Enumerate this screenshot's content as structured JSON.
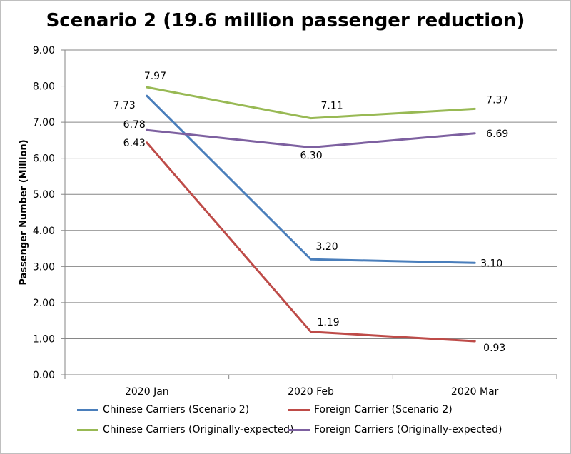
{
  "chart_data": {
    "type": "line",
    "title": "Scenario 2 (19.6 million passenger reduction)",
    "ylabel": "Passenger Number (Million)",
    "xlabel": "",
    "categories": [
      "2020 Jan",
      "2020 Feb",
      "2020 Mar"
    ],
    "ylim": [
      0,
      9
    ],
    "yticks": [
      "0.00",
      "1.00",
      "2.00",
      "3.00",
      "4.00",
      "5.00",
      "6.00",
      "7.00",
      "8.00",
      "9.00"
    ],
    "grid": true,
    "legend_position": "bottom",
    "series": [
      {
        "name": "Chinese Carriers (Scenario 2)",
        "values": [
          7.73,
          3.2,
          3.1
        ],
        "labels": [
          "7.73",
          "3.20",
          "3.10"
        ],
        "color": "#4a7ebb"
      },
      {
        "name": "Foreign Carrier (Scenario 2)",
        "values": [
          6.43,
          1.19,
          0.93
        ],
        "labels": [
          "6.43",
          "1.19",
          "0.93"
        ],
        "color": "#be4b48"
      },
      {
        "name": "Chinese Carriers (Originally-expected)",
        "values": [
          7.97,
          7.11,
          7.37
        ],
        "labels": [
          "7.97",
          "7.11",
          "7.37"
        ],
        "color": "#98b954"
      },
      {
        "name": "Foreign Carriers (Originally-expected)",
        "values": [
          6.78,
          6.3,
          6.69
        ],
        "labels": [
          "6.78",
          "6.30",
          "6.69"
        ],
        "color": "#7d60a0"
      }
    ]
  }
}
